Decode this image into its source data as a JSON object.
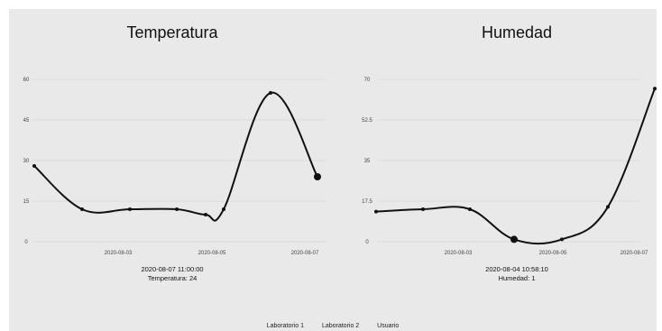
{
  "chart_data": [
    {
      "type": "line",
      "title": "Temperatura",
      "xlabel": "",
      "ylabel": "",
      "x": [
        "2020-08-01",
        "2020-08-02",
        "2020-08-03",
        "2020-08-04",
        "2020-08-05",
        "2020-08-05 12:00",
        "2020-08-06",
        "2020-08-07 11:00:00"
      ],
      "values": [
        28,
        12,
        12,
        12,
        10,
        12,
        55,
        24
      ],
      "yticks": [
        "0",
        "15",
        "30",
        "45",
        "60"
      ],
      "ylim": [
        0,
        60
      ],
      "xticks": [
        "2020-08-03",
        "2020-08-05",
        "2020-08-07"
      ],
      "highlight_index": 7,
      "tooltip": {
        "line1": "2020-08-07 11:00:00",
        "line2": "Temperatura: 24"
      },
      "grid": true
    },
    {
      "type": "line",
      "title": "Humedad",
      "xlabel": "",
      "ylabel": "",
      "x": [
        "2020-08-01",
        "2020-08-02",
        "2020-08-03",
        "2020-08-04 10:58:10",
        "2020-08-05",
        "2020-08-06",
        "2020-08-07"
      ],
      "values": [
        13,
        14,
        14,
        1,
        1,
        15,
        66
      ],
      "yticks": [
        "0",
        "17.5",
        "35",
        "52.5",
        "70"
      ],
      "ylim": [
        0,
        70
      ],
      "xticks": [
        "2020-08-03",
        "2020-08-05",
        "2020-08-07"
      ],
      "highlight_index": 3,
      "tooltip": {
        "line1": "2020-08-04 10:58:10",
        "line2": "Humedad: 1"
      },
      "grid": true
    }
  ],
  "legend": {
    "items": [
      "Laboratorio 1",
      "Laboratorio 2",
      "Usuario"
    ],
    "position": "bottom-center"
  },
  "colors": {
    "background": "#e9e9e9",
    "line": "#111111",
    "grid": "#d6d6d6"
  }
}
